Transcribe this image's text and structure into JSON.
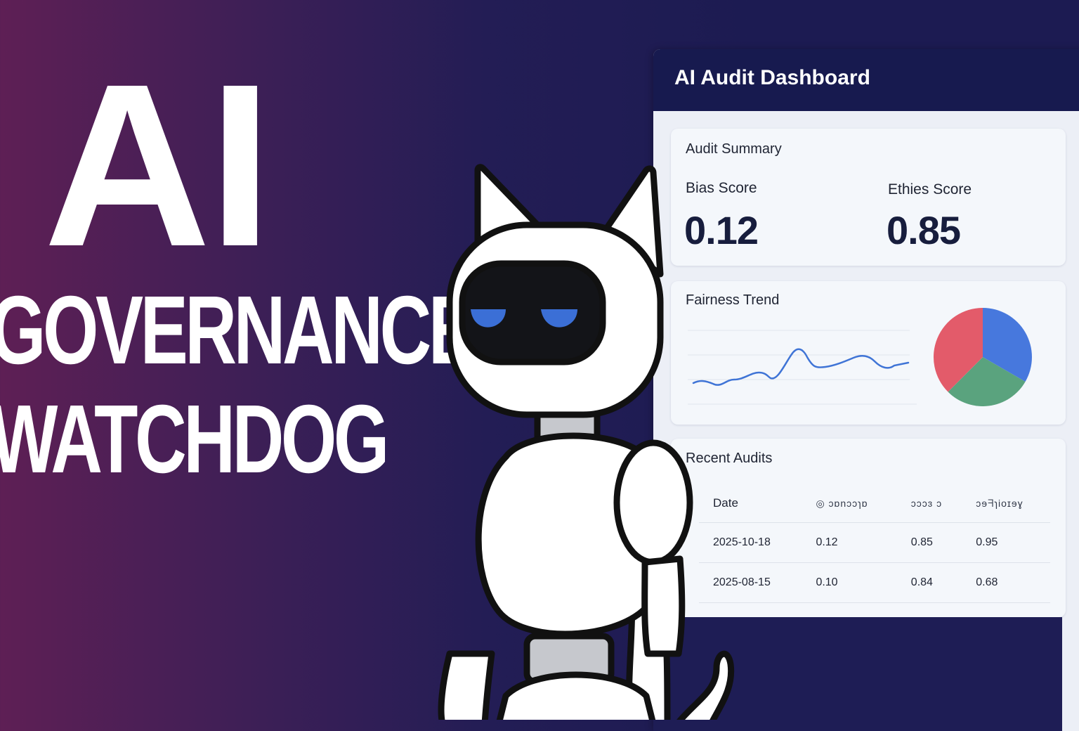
{
  "hero": {
    "line1": "AI",
    "line2": "GOVERNANCE",
    "line3": "WATCHDOG"
  },
  "dashboard": {
    "title": "AI Audit Dashboard",
    "summary": {
      "title": "Audit Summary",
      "bias_label": "Bias Score",
      "bias_value": "0.12",
      "ethics_label": "Ethies Score",
      "ethics_value": "0.85"
    },
    "trend": {
      "title": "Fairness Trend",
      "line_color": "#3f74d6",
      "pie_colors": [
        "#4778dd",
        "#5aa37e",
        "#e35b6a"
      ]
    },
    "recent": {
      "title": "Recent Audits",
      "headers": [
        "Date",
        "◎ ɔɒnɔɔɿɒ",
        "ɔɔɔɜ ɔ",
        "ɔɘᖷɿioɪɘɣ"
      ],
      "rows": [
        [
          "2025-10-18",
          "0.12",
          "0.85",
          "0.95"
        ],
        [
          "2025-08-15",
          "0.10",
          "0.84",
          "0.68"
        ]
      ]
    }
  },
  "mascot": {
    "icon": "robot-cat-icon",
    "eye_color": "#3b6fd6"
  }
}
